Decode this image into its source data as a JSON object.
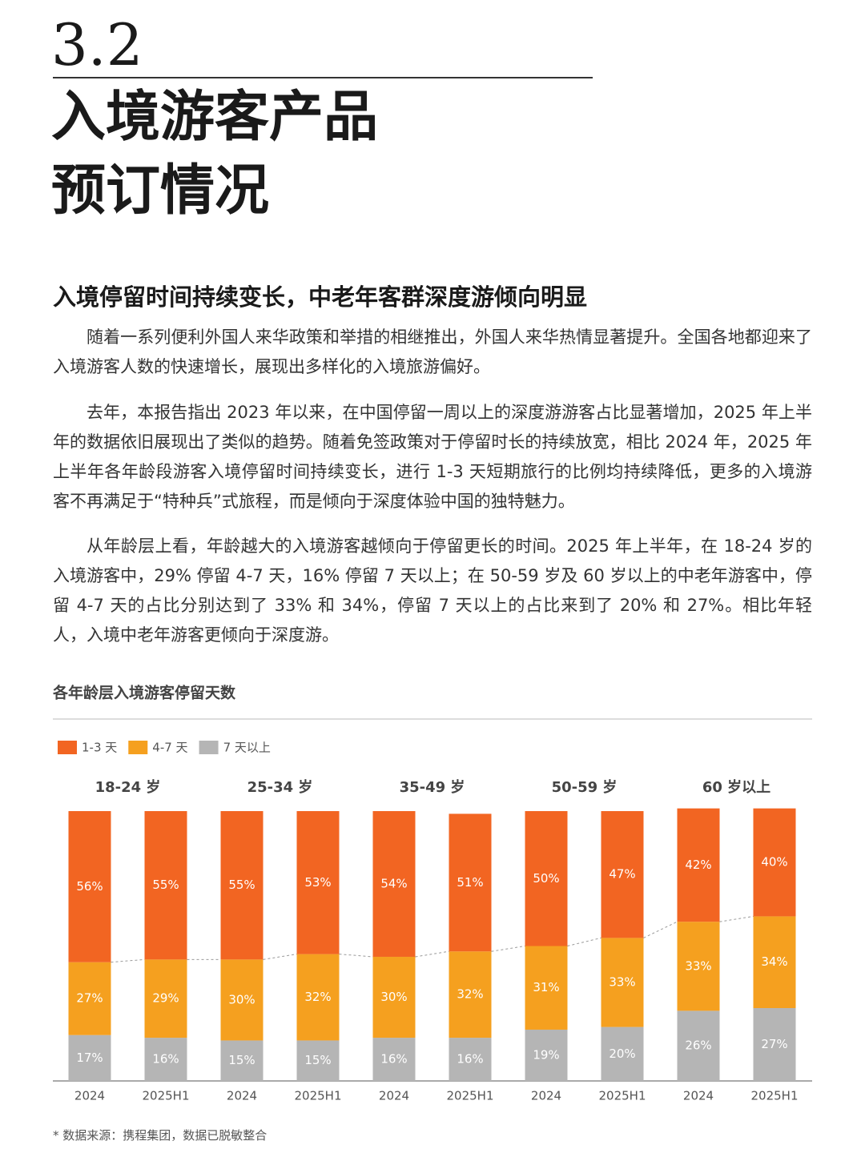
{
  "header": {
    "section": "3.2",
    "title_lines": [
      "入境游客产品",
      "预订情况"
    ]
  },
  "subheading": "入境停留时间持续变长，中老年客群深度游倾向明显",
  "paragraphs": [
    "随着一系列便利外国人来华政策和举措的相继推出，外国人来华热情显著提升。全国各地都迎来了入境游客人数的快速增长，展现出多样化的入境旅游偏好。",
    "去年，本报告指出 2023 年以来，在中国停留一周以上的深度游游客占比显著增加，2025 年上半年的数据依旧展现出了类似的趋势。随着免签政策对于停留时长的持续放宽，相比 2024 年，2025 年上半年各年龄段游客入境停留时间持续变长，进行 1-3 天短期旅行的比例均持续降低，更多的入境游客不再满足于“特种兵”式旅程，而是倾向于深度体验中国的独特魅力。",
    "从年龄层上看，年龄越大的入境游客越倾向于停留更长的时间。2025 年上半年，在 18-24 岁的入境游客中，29% 停留 4-7 天，16% 停留 7 天以上；在 50-59 岁及 60 岁以上的中老年游客中，停留 4-7 天的占比分别达到了 33% 和 34%，停留 7 天以上的占比来到了 20% 和 27%。相比年轻人，入境中老年游客更倾向于深度游。"
  ],
  "chart_data": {
    "type": "stacked_bar",
    "title": "各年龄层入境游客停留天数",
    "groups": [
      "18-24 岁",
      "25-34 岁",
      "35-49 岁",
      "50-59 岁",
      "60 岁以上"
    ],
    "categories": [
      "2024",
      "2025H1",
      "2024",
      "2025H1",
      "2024",
      "2025H1",
      "2024",
      "2025H1",
      "2024",
      "2025H1"
    ],
    "series": [
      {
        "name": "1-3 天",
        "color": "#f26522",
        "values": [
          56,
          55,
          55,
          53,
          54,
          51,
          50,
          47,
          42,
          40
        ],
        "value_labels": [
          "56%",
          "55%",
          "55%",
          "53%",
          "54%",
          "51%",
          "50%",
          "47%",
          "42%",
          "40%"
        ]
      },
      {
        "name": "4-7 天",
        "color": "#f5a01f",
        "values": [
          27,
          29,
          30,
          32,
          30,
          32,
          31,
          33,
          33,
          34
        ],
        "value_labels": [
          "27%",
          "29%",
          "30%",
          "32%",
          "30%",
          "32%",
          "31%",
          "33%",
          "33%",
          "34%"
        ]
      },
      {
        "name": "7 天以上",
        "color": "#b5b5b5",
        "values": [
          17,
          16,
          15,
          15,
          16,
          16,
          19,
          20,
          26,
          27
        ],
        "value_labels": [
          "17%",
          "16%",
          "15%",
          "15%",
          "16%",
          "16%",
          "19%",
          "20%",
          "26%",
          "27%"
        ]
      }
    ]
  },
  "footnote": "* 数据来源：携程集团，数据已脱敏整合"
}
